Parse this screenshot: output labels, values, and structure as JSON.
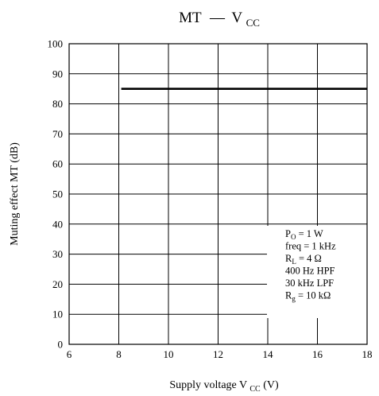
{
  "chart_data": {
    "type": "line",
    "title": {
      "main": "MT",
      "dash": "—",
      "base": "V",
      "sub": "CC"
    },
    "xlabel": {
      "pre": "Supply voltage  V",
      "sub": "CC",
      "post": "  (V)"
    },
    "ylabel": "Muting effect  MT  (dB)",
    "xlim": [
      6,
      18
    ],
    "ylim": [
      0,
      100
    ],
    "x_ticks": [
      6,
      8,
      10,
      12,
      14,
      16,
      18
    ],
    "y_ticks": [
      0,
      10,
      20,
      30,
      40,
      50,
      60,
      70,
      80,
      90,
      100
    ],
    "grid": true,
    "series": [
      {
        "x": [
          8.1,
          18
        ],
        "y": [
          85,
          85
        ]
      }
    ],
    "conditions": [
      {
        "base": "P",
        "sub": "O",
        "rest": " = 1 W"
      },
      {
        "base": "freq = 1 kHz",
        "sub": "",
        "rest": ""
      },
      {
        "base": "R",
        "sub": "L",
        "rest": " = 4 Ω"
      },
      {
        "base": "400 Hz HPF",
        "sub": "",
        "rest": ""
      },
      {
        "base": "30 kHz LPF",
        "sub": "",
        "rest": ""
      },
      {
        "base": "R",
        "sub": "g",
        "rest": " = 10 kΩ"
      }
    ]
  }
}
